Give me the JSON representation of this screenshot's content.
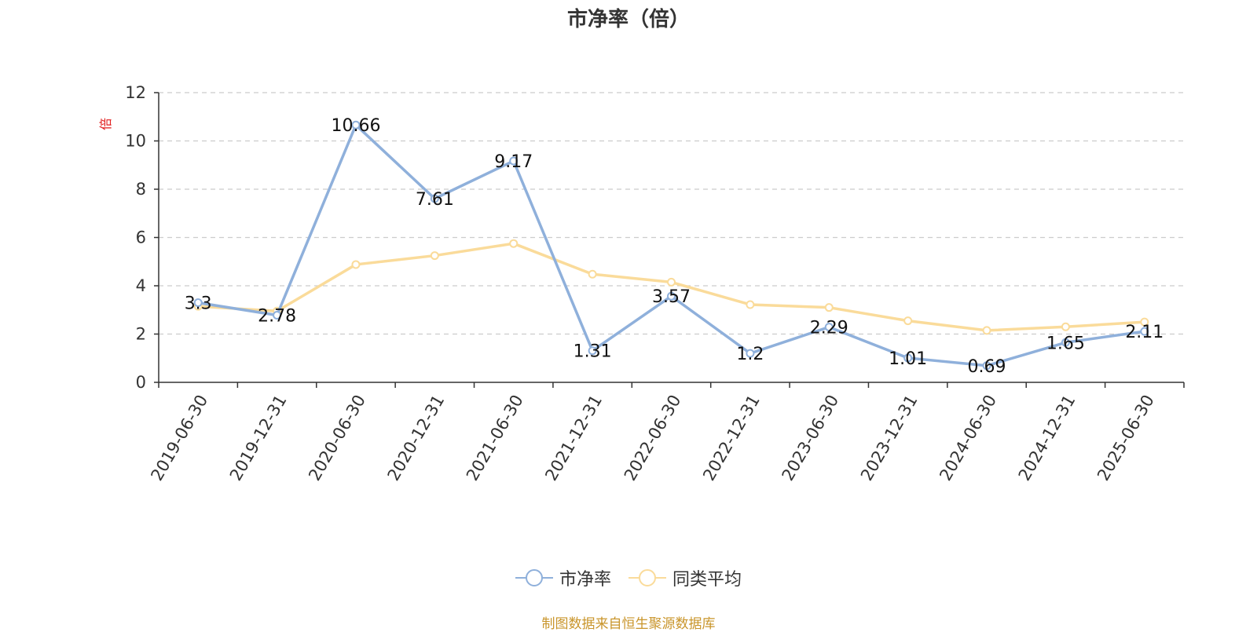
{
  "title": "市净率（倍）",
  "source_note": "制图数据来自恒生聚源数据库",
  "colors": {
    "series1": "#8fb0db",
    "series2": "#fadb9a",
    "unit": "#e01b1b",
    "source": "#c9952b",
    "grid": "#cccccc",
    "axis": "#333333"
  },
  "legend": [
    {
      "label": "市净率",
      "series": 0
    },
    {
      "label": "同类平均",
      "series": 1
    }
  ],
  "chart_data": {
    "type": "line",
    "title": "市净率（倍）",
    "ylabel": "倍",
    "xlabel": "",
    "x": [
      "2019-06-30",
      "2019-12-31",
      "2020-06-30",
      "2020-12-31",
      "2021-06-30",
      "2021-12-31",
      "2022-06-30",
      "2022-12-31",
      "2023-06-30",
      "2023-12-31",
      "2024-06-30",
      "2024-12-31",
      "2025-06-30"
    ],
    "ylim": [
      0,
      12
    ],
    "yticks": [
      0,
      2,
      4,
      6,
      8,
      10,
      12
    ],
    "grid": true,
    "legend_position": "bottom",
    "series": [
      {
        "name": "市净率",
        "values": [
          3.3,
          2.78,
          10.66,
          7.61,
          9.17,
          1.31,
          3.57,
          1.2,
          2.29,
          1.01,
          0.69,
          1.65,
          2.11
        ],
        "labels": [
          "3.3",
          "2.78",
          "10.66",
          "7.61",
          "9.17",
          "1.31",
          "3.57",
          "1.2",
          "2.29",
          "1.01",
          "0.69",
          "1.65",
          "2.11"
        ]
      },
      {
        "name": "同类平均",
        "values": [
          3.15,
          2.95,
          4.88,
          5.25,
          5.75,
          4.48,
          4.15,
          3.22,
          3.1,
          2.55,
          2.15,
          2.3,
          2.5
        ]
      }
    ]
  }
}
